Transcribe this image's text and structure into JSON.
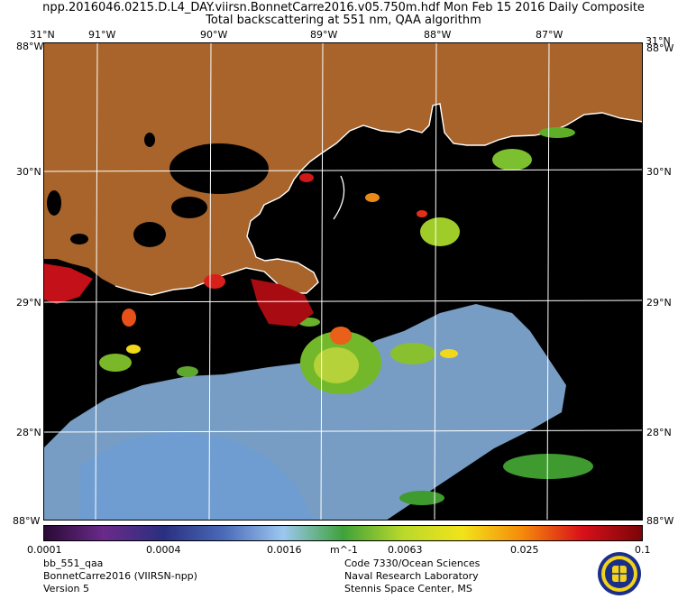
{
  "header": {
    "line1": "npp.2016046.0215.D.L4_DAY.viirsn.BonnetCarre2016.v05.750m.hdf   Mon Feb 15 2016 Daily Composite",
    "line2": "Total backscattering at 551 nm, QAA algorithm"
  },
  "axes": {
    "lon_labels": [
      "91°W",
      "90°W",
      "89°W",
      "88°W",
      "87°W"
    ],
    "lat_labels": [
      "30°N",
      "29°N",
      "28°N"
    ],
    "corner_tl_top": "31°N",
    "corner_tl_side": "88°W",
    "corner_tr_top": "31°N",
    "corner_tr_side": "88°W",
    "corner_bl": "88°W",
    "corner_br": "88°W"
  },
  "colorbar": {
    "ticks": [
      "0.0001",
      "0.0004",
      "0.0016",
      "0.0063",
      "0.025",
      "0.1"
    ],
    "unit": "m^-1",
    "colors": [
      "#2a0a35",
      "#6a2a8a",
      "#2a2f80",
      "#4a6ab8",
      "#9cc7f0",
      "#3fa23a",
      "#b9d92a",
      "#f2e31a",
      "#f58a0a",
      "#d8101a",
      "#7a0508"
    ]
  },
  "footer": {
    "left": [
      "bb_551_qaa",
      "BonnetCarre2016 (VIIRSN-npp)",
      "Version 5"
    ],
    "right": [
      "Code 7330/Ocean Sciences",
      "Naval Research Laboratory",
      "Stennis Space Center, MS"
    ]
  },
  "colors": {
    "land": "#a8642a",
    "ocean": "#000000",
    "grid": "#ffffff"
  },
  "icons": {
    "logo": "nrl-seal-icon"
  }
}
